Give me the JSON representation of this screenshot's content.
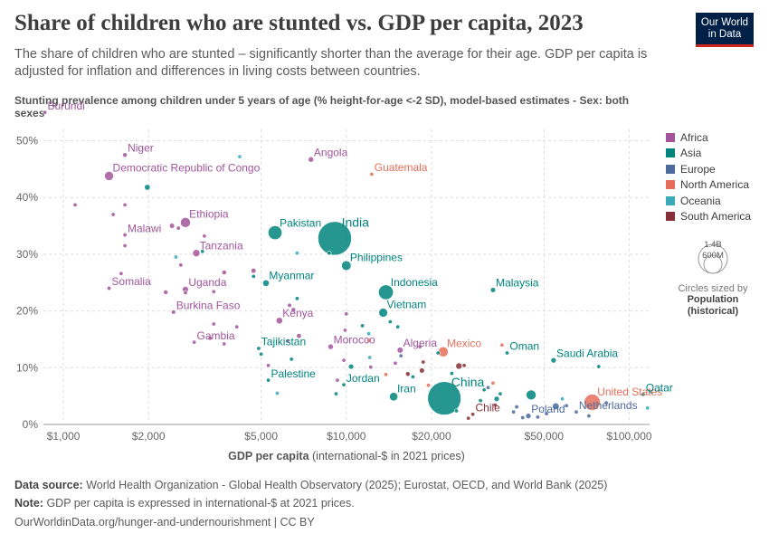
{
  "title": "Share of children who are stunted vs. GDP per capita, 2023",
  "subtitle": "The share of children who are stunted – significantly shorter than the average for their age. GDP per capita is adjusted for inflation and differences in living costs between countries.",
  "logo": {
    "line1": "Our World",
    "line2": "in Data"
  },
  "chart_data": {
    "type": "scatter",
    "ylabel": "Stunting prevalence among children under 5 years of age (% height-for-age <-2 SD), model-based estimates - Sex: both sexes",
    "xlabel_bold": "GDP per capita",
    "xlabel_rest": "(international-$ in 2021 prices)",
    "x_scale": "log",
    "xlim": [
      850,
      118000
    ],
    "ylim": [
      0,
      52
    ],
    "x_ticks": [
      {
        "v": 1000,
        "label": "$1,000"
      },
      {
        "v": 2000,
        "label": "$2,000"
      },
      {
        "v": 5000,
        "label": "$5,000"
      },
      {
        "v": 10000,
        "label": "$10,000"
      },
      {
        "v": 20000,
        "label": "$20,000"
      },
      {
        "v": 50000,
        "label": "$50,000"
      },
      {
        "v": 100000,
        "label": "$100,000"
      }
    ],
    "y_ticks": [
      {
        "v": 0,
        "label": "0%"
      },
      {
        "v": 10,
        "label": "10%"
      },
      {
        "v": 20,
        "label": "20%"
      },
      {
        "v": 30,
        "label": "30%"
      },
      {
        "v": 40,
        "label": "40%"
      },
      {
        "v": 50,
        "label": "50%"
      }
    ],
    "grid": true,
    "legend_position": "right",
    "colors": {
      "Africa": "#a2559c",
      "Asia": "#00847e",
      "Europe": "#4c6a9c",
      "North America": "#e56e5a",
      "Oceania": "#38aaba",
      "South America": "#883039"
    },
    "legend": [
      "Africa",
      "Asia",
      "Europe",
      "North America",
      "Oceania",
      "South America"
    ],
    "size_legend": {
      "big": "1.4B",
      "small": "600M",
      "caption": "Circles sized by",
      "variable": "Population (historical)"
    },
    "points": [
      {
        "label": "Burundi",
        "x": 860,
        "y": 55,
        "r": "Africa",
        "pop": 13,
        "lab": true
      },
      {
        "label": "Niger",
        "x": 1650,
        "y": 47.5,
        "r": "Africa",
        "pop": 27,
        "lab": true
      },
      {
        "label": "Democratic Republic of Congo",
        "x": 1450,
        "y": 43.8,
        "r": "Africa",
        "pop": 105,
        "lab": true
      },
      {
        "label": "Angola",
        "x": 7500,
        "y": 46.7,
        "r": "Africa",
        "pop": 37,
        "lab": true
      },
      {
        "label": "Guatemala",
        "x": 12300,
        "y": 44.1,
        "r": "North America",
        "pop": 18,
        "lab": true
      },
      {
        "label": "Ethiopia",
        "x": 2700,
        "y": 35.6,
        "r": "Africa",
        "pop": 127,
        "lab": true
      },
      {
        "label": "Malawi",
        "x": 1650,
        "y": 33.4,
        "r": "Africa",
        "pop": 21,
        "lab": true
      },
      {
        "label": "Tanzania",
        "x": 2950,
        "y": 30.2,
        "r": "Africa",
        "pop": 67,
        "lab": true
      },
      {
        "label": "Pakistan",
        "x": 5600,
        "y": 33.8,
        "r": "Asia",
        "pop": 245,
        "lab": true
      },
      {
        "label": "India",
        "x": 9100,
        "y": 32.8,
        "r": "Asia",
        "pop": 1430,
        "lab": true
      },
      {
        "label": "Philippines",
        "x": 10000,
        "y": 28.0,
        "r": "Asia",
        "pop": 117,
        "lab": true
      },
      {
        "label": "Somalia",
        "x": 1450,
        "y": 24.0,
        "r": "Africa",
        "pop": 18,
        "lab": true
      },
      {
        "label": "Uganda",
        "x": 2700,
        "y": 23.8,
        "r": "Africa",
        "pop": 48,
        "lab": true
      },
      {
        "label": "Myanmar",
        "x": 5200,
        "y": 24.9,
        "r": "Asia",
        "pop": 54,
        "lab": true
      },
      {
        "label": "Indonesia",
        "x": 13800,
        "y": 23.3,
        "r": "Asia",
        "pop": 277,
        "lab": true
      },
      {
        "label": "Malaysia",
        "x": 33000,
        "y": 23.7,
        "r": "Asia",
        "pop": 34,
        "lab": true
      },
      {
        "label": "Burkina Faso",
        "x": 2450,
        "y": 19.8,
        "r": "Africa",
        "pop": 23,
        "lab": true
      },
      {
        "label": "Kenya",
        "x": 5800,
        "y": 18.3,
        "r": "Africa",
        "pop": 55,
        "lab": true
      },
      {
        "label": "Vietnam",
        "x": 13500,
        "y": 19.7,
        "r": "Asia",
        "pop": 99,
        "lab": true
      },
      {
        "label": "Gambia",
        "x": 2900,
        "y": 14.5,
        "r": "Africa",
        "pop": 3,
        "lab": true
      },
      {
        "label": "Tajikistan",
        "x": 4900,
        "y": 13.4,
        "r": "Asia",
        "pop": 10,
        "lab": true
      },
      {
        "label": "Morocco",
        "x": 8800,
        "y": 13.7,
        "r": "Africa",
        "pop": 38,
        "lab": true
      },
      {
        "label": "Mexico",
        "x": 22000,
        "y": 12.8,
        "r": "North America",
        "pop": 129,
        "lab": true
      },
      {
        "label": "Oman",
        "x": 37000,
        "y": 12.6,
        "r": "Asia",
        "pop": 5,
        "lab": true
      },
      {
        "label": "Saudi Arabia",
        "x": 54000,
        "y": 11.3,
        "r": "Asia",
        "pop": 37,
        "lab": true
      },
      {
        "label": "Algeria",
        "x": 15500,
        "y": 13.1,
        "r": "Africa",
        "pop": 46,
        "lab": true
      },
      {
        "label": "Palestine",
        "x": 5300,
        "y": 7.8,
        "r": "Asia",
        "pop": 5,
        "lab": true
      },
      {
        "label": "Jordan",
        "x": 9800,
        "y": 7.0,
        "r": "Asia",
        "pop": 11,
        "lab": true
      },
      {
        "label": "Iran",
        "x": 14700,
        "y": 4.9,
        "r": "Asia",
        "pop": 90,
        "lab": true
      },
      {
        "label": "China",
        "x": 22200,
        "y": 4.6,
        "r": "Asia",
        "pop": 1410,
        "lab": true
      },
      {
        "label": "United States",
        "x": 74000,
        "y": 3.9,
        "r": "North America",
        "pop": 335,
        "lab": true
      },
      {
        "label": "Qatar",
        "x": 112000,
        "y": 5.3,
        "r": "Asia",
        "pop": 3,
        "lab": true
      },
      {
        "label": "Chile",
        "x": 28000,
        "y": 1.8,
        "r": "South America",
        "pop": 20,
        "lab": true
      },
      {
        "label": "Poland",
        "x": 44000,
        "y": 1.5,
        "r": "Europe",
        "pop": 37,
        "lab": true
      },
      {
        "label": "Netherlands",
        "x": 65000,
        "y": 2.2,
        "r": "Europe",
        "pop": 18,
        "lab": true
      },
      {
        "x": 1100,
        "y": 38.7,
        "r": "Africa",
        "pop": 6
      },
      {
        "x": 1500,
        "y": 37.0,
        "r": "Africa",
        "pop": 16
      },
      {
        "x": 1650,
        "y": 38.7,
        "r": "Africa",
        "pop": 9
      },
      {
        "x": 1650,
        "y": 31.5,
        "r": "Africa",
        "pop": 8
      },
      {
        "x": 1980,
        "y": 41.8,
        "r": "Asia",
        "pop": 42
      },
      {
        "x": 2420,
        "y": 35.0,
        "r": "Africa",
        "pop": 33
      },
      {
        "x": 2550,
        "y": 34.6,
        "r": "Africa",
        "pop": 9
      },
      {
        "x": 2500,
        "y": 29.5,
        "r": "Oceania",
        "pop": 10
      },
      {
        "x": 2600,
        "y": 28.1,
        "r": "Africa",
        "pop": 8
      },
      {
        "x": 3100,
        "y": 30.5,
        "r": "Asia",
        "pop": 7
      },
      {
        "x": 3150,
        "y": 33.2,
        "r": "Africa",
        "pop": 13
      },
      {
        "x": 4200,
        "y": 47.2,
        "r": "Oceania",
        "pop": 1
      },
      {
        "x": 3700,
        "y": 26.8,
        "r": "Africa",
        "pop": 28
      },
      {
        "x": 4700,
        "y": 27.1,
        "r": "Africa",
        "pop": 32
      },
      {
        "x": 4700,
        "y": 26.1,
        "r": "Asia",
        "pop": 17
      },
      {
        "x": 1600,
        "y": 26.6,
        "r": "Africa",
        "pop": 3
      },
      {
        "x": 2300,
        "y": 23.3,
        "r": "Africa",
        "pop": 26
      },
      {
        "x": 2700,
        "y": 23.2,
        "r": "Africa",
        "pop": 14
      },
      {
        "x": 3400,
        "y": 23.4,
        "r": "Africa",
        "pop": 2
      },
      {
        "x": 6300,
        "y": 21.0,
        "r": "Africa",
        "pop": 22
      },
      {
        "x": 6500,
        "y": 20.2,
        "r": "Africa",
        "pop": 28
      },
      {
        "x": 6700,
        "y": 22.2,
        "r": "Asia",
        "pop": 7
      },
      {
        "x": 6800,
        "y": 15.6,
        "r": "Africa",
        "pop": 30
      },
      {
        "x": 6200,
        "y": 14.7,
        "r": "Africa",
        "pop": 5
      },
      {
        "x": 3400,
        "y": 17.7,
        "r": "Africa",
        "pop": 8
      },
      {
        "x": 3300,
        "y": 15.2,
        "r": "Africa",
        "pop": 14
      },
      {
        "x": 3700,
        "y": 14.2,
        "r": "Africa",
        "pop": 2
      },
      {
        "x": 4100,
        "y": 17.2,
        "r": "Africa",
        "pop": 3
      },
      {
        "x": 5000,
        "y": 12.4,
        "r": "Asia",
        "pop": 7
      },
      {
        "x": 6400,
        "y": 11.5,
        "r": "Asia",
        "pop": 4
      },
      {
        "x": 5300,
        "y": 10.4,
        "r": "Africa",
        "pop": 3
      },
      {
        "x": 5700,
        "y": 5.5,
        "r": "Oceania",
        "pop": 1
      },
      {
        "x": 6700,
        "y": 30.2,
        "r": "Oceania",
        "pop": 1
      },
      {
        "x": 8700,
        "y": 30.2,
        "r": "Asia",
        "pop": 2
      },
      {
        "x": 10000,
        "y": 19.5,
        "r": "Africa",
        "pop": 4
      },
      {
        "x": 9900,
        "y": 16.6,
        "r": "Africa",
        "pop": 3
      },
      {
        "x": 11400,
        "y": 17.4,
        "r": "Asia",
        "pop": 8
      },
      {
        "x": 12000,
        "y": 16.0,
        "r": "Oceania",
        "pop": 1
      },
      {
        "x": 12000,
        "y": 14.8,
        "r": "North America",
        "pop": 10
      },
      {
        "x": 10400,
        "y": 10.2,
        "r": "Asia",
        "pop": 35
      },
      {
        "x": 9300,
        "y": 7.8,
        "r": "Africa",
        "pop": 1
      },
      {
        "x": 9200,
        "y": 5.4,
        "r": "Asia",
        "pop": 2
      },
      {
        "x": 9800,
        "y": 11.3,
        "r": "Africa",
        "pop": 3
      },
      {
        "x": 12100,
        "y": 11.8,
        "r": "Oceania",
        "pop": 1
      },
      {
        "x": 12200,
        "y": 10.1,
        "r": "Africa",
        "pop": 6
      },
      {
        "x": 13800,
        "y": 8.8,
        "r": "North America",
        "pop": 6
      },
      {
        "x": 14300,
        "y": 18.1,
        "r": "Asia",
        "pop": 7
      },
      {
        "x": 15200,
        "y": 17.2,
        "r": "Asia",
        "pop": 5
      },
      {
        "x": 14900,
        "y": 10.8,
        "r": "Africa",
        "pop": 12
      },
      {
        "x": 15600,
        "y": 12.1,
        "r": "Europe",
        "pop": 3
      },
      {
        "x": 16500,
        "y": 8.9,
        "r": "South America",
        "pop": 28
      },
      {
        "x": 17200,
        "y": 8.4,
        "r": "Asia",
        "pop": 20
      },
      {
        "x": 18200,
        "y": 13.7,
        "r": "Africa",
        "pop": 1
      },
      {
        "x": 18700,
        "y": 11.0,
        "r": "South America",
        "pop": 18
      },
      {
        "x": 18500,
        "y": 9.5,
        "r": "South America",
        "pop": 34
      },
      {
        "x": 19500,
        "y": 6.9,
        "r": "North America",
        "pop": 4
      },
      {
        "x": 21100,
        "y": 12.6,
        "r": "Asia",
        "pop": 3
      },
      {
        "x": 23600,
        "y": 9.0,
        "r": "Asia",
        "pop": 4
      },
      {
        "x": 25000,
        "y": 10.3,
        "r": "South America",
        "pop": 52
      },
      {
        "x": 26100,
        "y": 10.4,
        "r": "South America",
        "pop": 8
      },
      {
        "x": 24500,
        "y": 2.4,
        "r": "Asia",
        "pop": 10
      },
      {
        "x": 27000,
        "y": 1.1,
        "r": "South America",
        "pop": 3
      },
      {
        "x": 29800,
        "y": 4.2,
        "r": "Asia",
        "pop": 2
      },
      {
        "x": 30700,
        "y": 6.1,
        "r": "Asia",
        "pop": 10
      },
      {
        "x": 31700,
        "y": 6.5,
        "r": "Europe",
        "pop": 2
      },
      {
        "x": 33000,
        "y": 7.3,
        "r": "North America",
        "pop": 1
      },
      {
        "x": 33600,
        "y": 3.4,
        "r": "South America",
        "pop": 4
      },
      {
        "x": 34000,
        "y": 4.5,
        "r": "Asia",
        "pop": 36
      },
      {
        "x": 35000,
        "y": 5.4,
        "r": "Asia",
        "pop": 9
      },
      {
        "x": 35500,
        "y": 14.0,
        "r": "North America",
        "pop": 1
      },
      {
        "x": 39000,
        "y": 2.2,
        "r": "Europe",
        "pop": 3
      },
      {
        "x": 40000,
        "y": 3.1,
        "r": "Europe",
        "pop": 4
      },
      {
        "x": 42000,
        "y": 1.2,
        "r": "Europe",
        "pop": 4
      },
      {
        "x": 45000,
        "y": 5.2,
        "r": "Asia",
        "pop": 125
      },
      {
        "x": 47500,
        "y": 1.3,
        "r": "Europe",
        "pop": 10
      },
      {
        "x": 51000,
        "y": 1.9,
        "r": "Europe",
        "pop": 5
      },
      {
        "x": 55000,
        "y": 3.2,
        "r": "Europe",
        "pop": 60
      },
      {
        "x": 58000,
        "y": 4.5,
        "r": "Oceania",
        "pop": 5
      },
      {
        "x": 60000,
        "y": 3.3,
        "r": "Europe",
        "pop": 2
      },
      {
        "x": 72000,
        "y": 1.5,
        "r": "Europe",
        "pop": 5
      },
      {
        "x": 78000,
        "y": 10.2,
        "r": "Asia",
        "pop": 4
      },
      {
        "x": 83000,
        "y": 3.8,
        "r": "Europe",
        "pop": 5
      },
      {
        "x": 116000,
        "y": 2.9,
        "r": "Oceania",
        "pop": 1
      }
    ]
  },
  "footer": {
    "source_label": "Data source:",
    "source_text": "World Health Organization - Global Health Observatory (2025); Eurostat, OECD, and World Bank (2025)",
    "note_label": "Note:",
    "note_text": "GDP per capita is expressed in international-$ at 2021 prices.",
    "url_text": "OurWorldinData.org/hunger-and-undernourishment | CC BY"
  }
}
